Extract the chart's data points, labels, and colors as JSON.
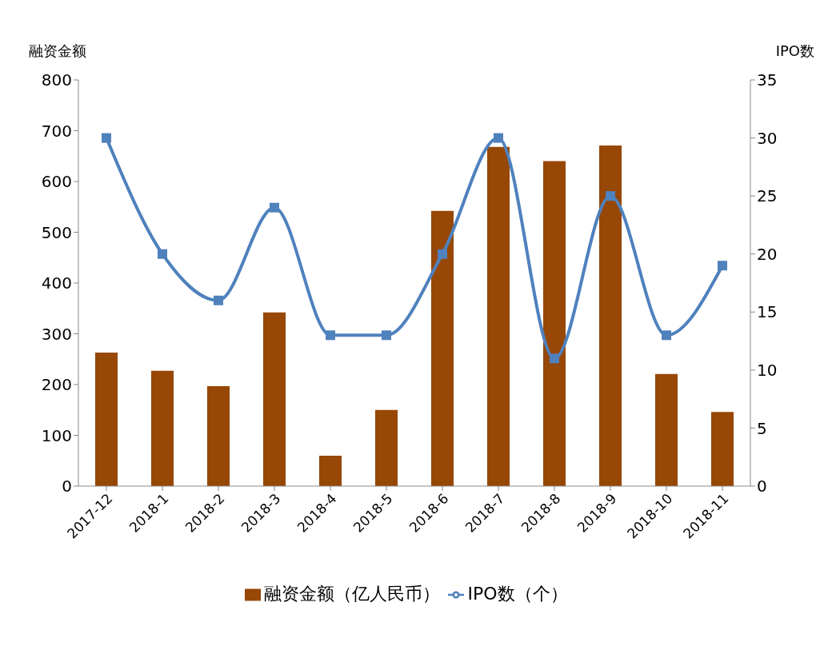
{
  "chart_data": {
    "type": "bar",
    "ylabel": "融资金额",
    "y2label": "IPO数",
    "categories": [
      "2017-12",
      "2018-1",
      "2018-2",
      "2018-3",
      "2018-4",
      "2018-5",
      "2018-6",
      "2018-7",
      "2018-8",
      "2018-9",
      "2018-10",
      "2018-11"
    ],
    "series": [
      {
        "name": "融资金额（亿人民币）",
        "color": "#974706",
        "values": [
          263,
          227,
          197,
          342,
          60,
          150,
          542,
          668,
          640,
          671,
          221,
          146
        ]
      },
      {
        "name": "IPO数（个）",
        "type": "line",
        "axis": "y2",
        "color": "#4f81bd",
        "marker": "square",
        "values": [
          30,
          20,
          16,
          24,
          13,
          13,
          20,
          30,
          11,
          25,
          13,
          19
        ]
      }
    ],
    "ylim": [
      0,
      800
    ],
    "yticks": [
      0,
      100,
      200,
      300,
      400,
      500,
      600,
      700,
      800
    ],
    "y2lim": [
      0,
      35
    ],
    "y2ticks": [
      0,
      5,
      10,
      15,
      20,
      25,
      30,
      35
    ],
    "legend": "bottom"
  }
}
